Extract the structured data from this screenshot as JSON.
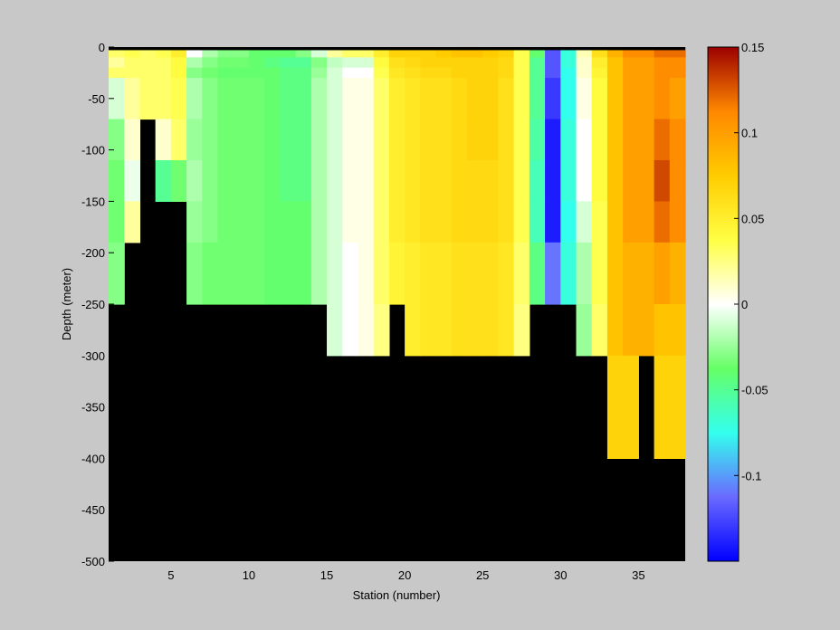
{
  "chart_data": {
    "type": "heatmap",
    "title": "",
    "xlabel": "Station (number)",
    "ylabel": "Depth (meter)",
    "xlim": [
      1,
      38
    ],
    "ylim": [
      -500,
      0
    ],
    "xticks": [
      5,
      10,
      15,
      20,
      25,
      30,
      35
    ],
    "yticks": [
      0,
      -50,
      -100,
      -150,
      -200,
      -250,
      -300,
      -350,
      -400,
      -450,
      -500
    ],
    "colorbar": {
      "range": [
        -0.15,
        0.15
      ],
      "ticks": [
        0.15,
        0.1,
        0.05,
        0,
        -0.05,
        -0.1
      ],
      "colormap": "blue-cyan-green-white-yellow-orange-red",
      "colors": [
        "#0000ff",
        "#6a6aff",
        "#33ffee",
        "#66ff66",
        "#ffffff",
        "#ffff44",
        "#ffcc00",
        "#ff8800",
        "#9b0000"
      ]
    },
    "depth_bins": [
      0,
      -10,
      -20,
      -30,
      -70,
      -110,
      -150,
      -190,
      -250,
      -300,
      -400,
      -500
    ],
    "stations": [
      1,
      2,
      3,
      4,
      5,
      6,
      7,
      8,
      9,
      10,
      11,
      12,
      13,
      14,
      15,
      16,
      17,
      18,
      19,
      20,
      21,
      22,
      23,
      24,
      25,
      26,
      27,
      28,
      29,
      30,
      31,
      32,
      33,
      34,
      35,
      36,
      37
    ],
    "bottom_depth": [
      -250,
      -200,
      -75,
      -150,
      -150,
      -250,
      -250,
      -250,
      -250,
      -250,
      -250,
      -250,
      -250,
      -250,
      -300,
      -300,
      -300,
      -300,
      -250,
      -300,
      -300,
      -300,
      -300,
      -300,
      -300,
      -300,
      -250,
      -250,
      -250,
      -300,
      -300,
      -300,
      -400,
      -400,
      -300,
      -400,
      -400
    ],
    "surface_no_data": [
      0,
      -3
    ],
    "no_data_color": "#000000",
    "values": [
      [
        0.03,
        0.035,
        0.03,
        0.035,
        0.05,
        0.0,
        -0.02,
        -0.03,
        -0.03,
        -0.04,
        -0.04,
        -0.04,
        -0.03,
        -0.01,
        0.02,
        0.03,
        0.03,
        0.05,
        0.07,
        0.07,
        0.07,
        0.075,
        0.08,
        0.08,
        0.075,
        0.07,
        0.035,
        -0.04,
        -0.12,
        -0.07,
        0.015,
        0.06,
        0.09,
        0.11,
        0.11,
        0.12,
        0.12
      ],
      [
        0.02,
        0.03,
        0.03,
        0.03,
        0.04,
        -0.02,
        -0.03,
        -0.035,
        -0.035,
        -0.04,
        -0.045,
        -0.05,
        -0.05,
        -0.03,
        -0.015,
        -0.01,
        -0.01,
        0.04,
        0.06,
        0.065,
        0.07,
        0.07,
        0.07,
        0.07,
        0.07,
        0.065,
        0.035,
        -0.05,
        -0.12,
        -0.07,
        0.01,
        0.05,
        0.08,
        0.1,
        0.1,
        0.11,
        0.11
      ],
      [
        0.03,
        0.03,
        0.03,
        0.03,
        0.04,
        -0.03,
        -0.035,
        -0.04,
        -0.04,
        -0.04,
        -0.04,
        -0.045,
        -0.045,
        -0.025,
        -0.01,
        0.0,
        0.0,
        0.035,
        0.055,
        0.06,
        0.065,
        0.065,
        0.07,
        0.07,
        0.07,
        0.065,
        0.035,
        -0.05,
        -0.12,
        -0.075,
        0.01,
        0.045,
        0.08,
        0.1,
        0.1,
        0.11,
        0.11
      ],
      [
        -0.01,
        0.02,
        0.03,
        0.03,
        0.035,
        -0.02,
        -0.03,
        -0.035,
        -0.035,
        -0.035,
        -0.04,
        -0.045,
        -0.045,
        -0.02,
        -0.01,
        0.005,
        0.005,
        0.03,
        0.05,
        0.055,
        0.06,
        0.06,
        0.065,
        0.07,
        0.07,
        0.06,
        0.035,
        -0.05,
        -0.13,
        -0.075,
        0.005,
        0.04,
        0.08,
        0.1,
        0.1,
        0.11,
        0.1
      ],
      [
        -0.03,
        0.01,
        null,
        0.01,
        0.03,
        -0.025,
        -0.03,
        -0.035,
        -0.035,
        -0.035,
        -0.04,
        -0.045,
        -0.045,
        -0.02,
        -0.01,
        0.005,
        0.005,
        0.03,
        0.05,
        0.055,
        0.06,
        0.06,
        0.065,
        0.07,
        0.07,
        0.06,
        0.035,
        -0.055,
        -0.14,
        -0.07,
        0.0,
        0.04,
        0.08,
        0.1,
        0.1,
        0.12,
        0.11
      ],
      [
        -0.035,
        -0.005,
        null,
        -0.05,
        -0.035,
        -0.02,
        -0.03,
        -0.035,
        -0.035,
        -0.035,
        -0.04,
        -0.045,
        -0.045,
        -0.02,
        -0.01,
        0.005,
        0.005,
        0.03,
        0.05,
        0.055,
        0.06,
        0.06,
        0.065,
        0.065,
        0.065,
        0.06,
        0.035,
        -0.06,
        -0.14,
        -0.07,
        0.0,
        0.04,
        0.08,
        0.1,
        0.1,
        0.13,
        0.11
      ],
      [
        -0.035,
        0.02,
        null,
        null,
        null,
        -0.025,
        -0.03,
        -0.035,
        -0.035,
        -0.035,
        -0.04,
        -0.04,
        -0.04,
        -0.02,
        -0.01,
        0.005,
        0.005,
        0.03,
        0.05,
        0.055,
        0.06,
        0.06,
        0.065,
        0.065,
        0.065,
        0.06,
        0.035,
        -0.06,
        -0.14,
        -0.075,
        -0.01,
        0.035,
        0.08,
        0.1,
        0.1,
        0.12,
        0.11
      ],
      [
        -0.03,
        null,
        null,
        null,
        null,
        -0.03,
        -0.035,
        -0.035,
        -0.035,
        -0.035,
        -0.04,
        -0.04,
        -0.04,
        -0.02,
        -0.01,
        0.0,
        0.005,
        0.03,
        0.045,
        0.05,
        0.055,
        0.055,
        0.06,
        0.06,
        0.06,
        0.055,
        0.03,
        -0.045,
        -0.11,
        -0.07,
        -0.02,
        0.035,
        0.08,
        0.09,
        0.09,
        0.1,
        0.09
      ],
      [
        null,
        null,
        null,
        null,
        null,
        null,
        null,
        null,
        null,
        null,
        null,
        null,
        null,
        null,
        -0.01,
        0.0,
        0.005,
        0.025,
        null,
        0.05,
        0.055,
        0.055,
        0.06,
        0.06,
        0.06,
        0.055,
        0.025,
        null,
        null,
        null,
        -0.025,
        0.03,
        0.08,
        0.09,
        0.09,
        0.08,
        0.08
      ],
      [
        null,
        null,
        null,
        null,
        null,
        null,
        null,
        null,
        null,
        null,
        null,
        null,
        null,
        null,
        null,
        null,
        null,
        null,
        null,
        null,
        null,
        null,
        null,
        null,
        null,
        null,
        null,
        null,
        null,
        null,
        null,
        null,
        0.07,
        0.07,
        null,
        0.07,
        0.07
      ],
      [
        null,
        null,
        null,
        null,
        null,
        null,
        null,
        null,
        null,
        null,
        null,
        null,
        null,
        null,
        null,
        null,
        null,
        null,
        null,
        null,
        null,
        null,
        null,
        null,
        null,
        null,
        null,
        null,
        null,
        null,
        null,
        null,
        null,
        null,
        null,
        null,
        null
      ]
    ]
  }
}
